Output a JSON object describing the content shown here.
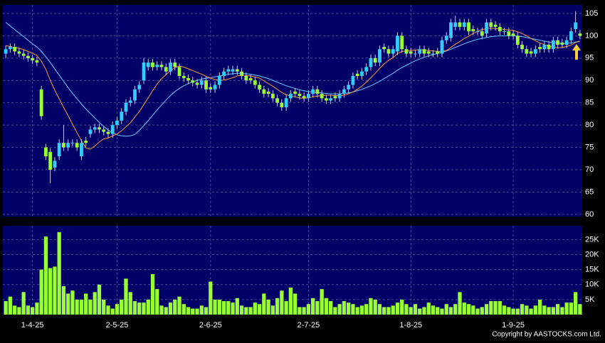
{
  "chart_data": {
    "type": "candlestick",
    "categories": [
      null,
      null,
      null,
      null,
      null,
      null,
      "1-4-25",
      null,
      null,
      null,
      null,
      null,
      null,
      null,
      null,
      null,
      null,
      null,
      null,
      null,
      null,
      null,
      null,
      null,
      null,
      "2-5-25",
      null,
      null,
      null,
      null,
      null,
      null,
      null,
      null,
      null,
      null,
      null,
      null,
      null,
      null,
      null,
      null,
      null,
      null,
      null,
      null,
      "2-6-25",
      null,
      null,
      null,
      null,
      null,
      null,
      null,
      null,
      null,
      null,
      null,
      null,
      null,
      null,
      null,
      null,
      null,
      null,
      null,
      null,
      null,
      "2-7-25",
      null,
      null,
      null,
      null,
      null,
      null,
      null,
      null,
      null,
      null,
      null,
      null,
      null,
      null,
      null,
      null,
      null,
      null,
      null,
      null,
      null,
      null,
      "1-8-25",
      null,
      null,
      null,
      null,
      null,
      null,
      null,
      null,
      null,
      null,
      null,
      null,
      null,
      null,
      null,
      null,
      null,
      null,
      null,
      null,
      null,
      null,
      "1-9-25",
      null,
      null,
      null,
      null,
      null,
      null,
      null,
      null,
      null,
      null,
      null,
      null,
      null,
      null,
      null
    ],
    "open": [
      96,
      97,
      97.5,
      96.5,
      96,
      95.5,
      95,
      94.5,
      88,
      75,
      74,
      70.5,
      73,
      76,
      75,
      76,
      76,
      73,
      76.5,
      78,
      79,
      79.5,
      79,
      78.5,
      78,
      80,
      81,
      83,
      85,
      85.5,
      88,
      90,
      93,
      94,
      93,
      93.5,
      93,
      92,
      94,
      93,
      91,
      90.5,
      90,
      89.5,
      89,
      90,
      88.5,
      88,
      89,
      91,
      92,
      92,
      92.5,
      92,
      91,
      90.5,
      90,
      89,
      88,
      87.5,
      87,
      86,
      85,
      84,
      86,
      87.5,
      87,
      86.5,
      86,
      87,
      88,
      87,
      86,
      85.5,
      86.5,
      86,
      87,
      88,
      89,
      91.5,
      91,
      92,
      93,
      95,
      94,
      97.5,
      97,
      96,
      96.5,
      100,
      97,
      96.5,
      96,
      96,
      97,
      96.5,
      96,
      96.5,
      96,
      99,
      99.5,
      102,
      103,
      102,
      103,
      101.5,
      101,
      101,
      100.5,
      103,
      102.5,
      102,
      101,
      101,
      100.5,
      100,
      98,
      97,
      96.5,
      96,
      97.5,
      97,
      98,
      97,
      99,
      98.5,
      98,
      99,
      101.5,
      100.5
    ],
    "high": [
      97.8,
      98.3,
      98.3,
      97.3,
      96.8,
      96.3,
      95.8,
      95.3,
      88.8,
      75.8,
      74.8,
      72.8,
      76.8,
      80,
      76.8,
      76.8,
      76.8,
      76.8,
      77.3,
      79.8,
      80.3,
      80.3,
      79.8,
      79.3,
      80.8,
      81.8,
      83.8,
      85.8,
      86.3,
      88.8,
      89.8,
      95,
      94.8,
      94.8,
      94.3,
      94.3,
      93.8,
      94.8,
      94.8,
      93.8,
      91.8,
      91.3,
      90.8,
      90.3,
      90.8,
      90.8,
      89.3,
      89.8,
      91.8,
      92.8,
      93.3,
      93.3,
      93.3,
      92.8,
      91.8,
      91.3,
      90.8,
      89.8,
      88.8,
      88.3,
      87.8,
      86.8,
      85.8,
      86.8,
      87.8,
      88.3,
      87.8,
      87.3,
      87.8,
      88.8,
      88.8,
      87.8,
      86.8,
      86.8,
      87.3,
      87.8,
      88.8,
      89.8,
      91.8,
      92.3,
      92.8,
      93.8,
      95.8,
      95.8,
      97.8,
      98.3,
      97.8,
      97.8,
      100.8,
      100.8,
      97.8,
      97.3,
      96.8,
      97.8,
      97.8,
      97.3,
      96.8,
      97.3,
      99.8,
      100.8,
      103.8,
      104.5,
      103.8,
      103.8,
      103.8,
      102.3,
      101.8,
      101.8,
      103.8,
      103.8,
      103.3,
      102.8,
      101.8,
      101.8,
      101.3,
      100.8,
      98.8,
      97.8,
      97.3,
      97.8,
      98.3,
      98.8,
      98.8,
      99.8,
      99.8,
      99.3,
      99.8,
      101.8,
      105.5,
      101.3
    ],
    "low": [
      95,
      96.2,
      95.7,
      95.2,
      94.7,
      94.2,
      93.7,
      93.2,
      81.2,
      72.2,
      67,
      69.7,
      72.2,
      74.2,
      74.2,
      75.2,
      74.2,
      72.2,
      75.2,
      77.2,
      78.2,
      78.2,
      77.7,
      77.2,
      77.2,
      79.2,
      80.2,
      82.2,
      84.2,
      84.7,
      87.2,
      89.2,
      92.2,
      92.2,
      92.2,
      92.2,
      91.2,
      91.2,
      92.2,
      90.2,
      89.7,
      89.2,
      88.7,
      88.2,
      88.2,
      87.2,
      87.2,
      87.2,
      88.2,
      90.2,
      91.2,
      91.2,
      91.2,
      90.2,
      89.2,
      89.2,
      88.2,
      87.2,
      86.2,
      86.2,
      85.2,
      84.2,
      83.2,
      83.2,
      85.2,
      86.2,
      85.7,
      85.2,
      85.2,
      86.2,
      86.2,
      85.2,
      84.7,
      84.7,
      85.2,
      85.2,
      86.2,
      87.2,
      88.2,
      90.2,
      90.2,
      91.2,
      92.2,
      93.2,
      93.2,
      96.2,
      95.2,
      95.2,
      95.7,
      96.2,
      95.2,
      95.2,
      95.2,
      95.2,
      95.2,
      95.2,
      95.2,
      95.2,
      95.2,
      98.2,
      98.7,
      101.2,
      101.2,
      101.2,
      100.2,
      100.2,
      100.2,
      99.2,
      99.7,
      101.2,
      101.2,
      100.2,
      100.2,
      99.2,
      99.2,
      97.2,
      96.2,
      95.2,
      95.2,
      95.2,
      96.2,
      96.2,
      96.2,
      96.2,
      97.2,
      97.2,
      97.2,
      98.2,
      100.7,
      99.2
    ],
    "close": [
      97,
      97.5,
      96.5,
      96,
      95.5,
      95,
      94.5,
      94,
      82,
      73,
      70,
      72,
      76,
      75,
      76,
      76,
      75,
      76,
      76,
      79,
      79.5,
      79,
      78.5,
      78,
      80,
      81,
      83,
      85,
      85.5,
      88,
      89,
      94,
      94,
      93,
      93.5,
      93,
      92,
      94,
      93,
      91,
      90.5,
      90,
      89.5,
      89,
      90,
      88,
      88,
      89,
      91,
      92,
      92.5,
      92.5,
      92,
      91,
      90,
      90,
      89,
      88,
      87,
      87,
      86,
      85,
      84,
      86,
      87,
      87,
      86.5,
      86,
      87,
      88,
      87,
      86,
      85.5,
      86,
      86,
      87,
      88,
      89,
      91,
      91,
      92,
      93,
      95,
      94,
      97,
      97,
      96,
      97,
      100,
      97,
      96,
      96,
      96,
      97,
      96,
      96,
      96,
      96,
      99,
      100,
      103,
      103,
      102,
      103,
      101,
      101,
      101,
      100,
      103,
      102,
      102,
      101,
      101,
      100,
      100,
      98,
      97,
      96,
      96,
      97,
      97,
      98,
      97,
      99,
      98,
      98,
      99,
      101,
      103,
      100
    ],
    "up_color": "#33ccff",
    "down_color": "#99ff33",
    "ma_fast": {
      "color": "#ff9933",
      "values": [
        97.8,
        97.6,
        97.4,
        97.2,
        96.9,
        96.5,
        96.1,
        95.6,
        94.3,
        92.5,
        90,
        87.8,
        85.9,
        84,
        82.1,
        80.2,
        78.3,
        76.5,
        74.9,
        74.6,
        75.3,
        76.2,
        76.9,
        77.1,
        77.6,
        78,
        78.7,
        79.6,
        80.5,
        81.8,
        83,
        84.6,
        86.1,
        87.7,
        89.2,
        90.4,
        91.3,
        92.2,
        92.9,
        93.2,
        93,
        92.6,
        92.2,
        91.8,
        91.4,
        90.9,
        90.5,
        90.2,
        90,
        90.1,
        90.3,
        90.6,
        91,
        91.2,
        91.1,
        91,
        90.8,
        90.5,
        89.9,
        89.3,
        88.7,
        88,
        87.3,
        86.8,
        86.5,
        86.3,
        86.1,
        86,
        86.1,
        86.3,
        86.5,
        86.6,
        86.7,
        86.7,
        86.6,
        86.6,
        86.7,
        87,
        87.4,
        88,
        88.7,
        89.6,
        90.6,
        91.6,
        92.7,
        93.7,
        94.5,
        95.1,
        96,
        96.5,
        96.6,
        96.7,
        96.8,
        96.9,
        96.8,
        96.7,
        96.6,
        96.5,
        96.5,
        96.7,
        97.4,
        98.1,
        98.7,
        99.4,
        99.9,
        100.5,
        101,
        101.4,
        101.6,
        101.7,
        101.6,
        101.6,
        101.4,
        101.3,
        101.2,
        100.9,
        100.5,
        100,
        99.4,
        98.9,
        98.4,
        98,
        97.6,
        97.5,
        97.3,
        97.4,
        97.6,
        97.9,
        98.5,
        98.8
      ]
    },
    "ma_slow": {
      "color": "#66ccff",
      "values": [
        103,
        102.2,
        101.4,
        100.6,
        99.8,
        99,
        98.2,
        97.5,
        96.5,
        95.3,
        94,
        92.6,
        91.2,
        89.8,
        88.4,
        87.1,
        85.9,
        84.7,
        83.6,
        82.6,
        81.6,
        80.6,
        79.7,
        78.9,
        78.3,
        77.8,
        77.6,
        77.5,
        77.6,
        77.9,
        78.8,
        79.9,
        81,
        82.2,
        83.4,
        84.5,
        85.6,
        86.6,
        87.5,
        88.2,
        88.8,
        89.3,
        89.7,
        90,
        90.3,
        90.5,
        90.6,
        90.8,
        91,
        91.2,
        91.4,
        91.5,
        91.6,
        91.6,
        91.5,
        91.4,
        91.2,
        91,
        90.7,
        90.4,
        90,
        89.6,
        89.2,
        88.8,
        88.5,
        88.2,
        87.9,
        87.7,
        87.5,
        87.4,
        87.3,
        87.2,
        87.1,
        87,
        87,
        87,
        87.1,
        87.2,
        87.4,
        87.7,
        88,
        88.4,
        88.8,
        89.3,
        89.8,
        90.4,
        91,
        91.6,
        92.3,
        92.9,
        93.4,
        93.9,
        94.4,
        94.8,
        95.2,
        95.5,
        95.8,
        96,
        96.3,
        96.6,
        97,
        97.4,
        97.8,
        98.2,
        98.6,
        98.9,
        99.2,
        99.4,
        99.6,
        99.8,
        99.9,
        100,
        100,
        100,
        100,
        99.9,
        99.8,
        99.6,
        99.4,
        99.2,
        99,
        98.8,
        98.6,
        98.5,
        98.4,
        98.3,
        98.3,
        98.4,
        98.6,
        98.8
      ]
    },
    "ylim": [
      59.5,
      106.9
    ],
    "yticks": [
      60,
      65,
      70,
      75,
      80,
      85,
      90,
      95,
      100,
      105
    ],
    "volume": {
      "color": "#99ff33",
      "values": [
        4500,
        6000,
        3000,
        2500,
        7500,
        3000,
        2500,
        4000,
        15000,
        26000,
        15500,
        16000,
        27500,
        9500,
        7000,
        8000,
        5000,
        5000,
        7000,
        5000,
        7500,
        10000,
        5000,
        3000,
        2000,
        3500,
        5000,
        12000,
        7500,
        4500,
        4000,
        4000,
        5000,
        13500,
        8500,
        3000,
        2500,
        4000,
        5000,
        6000,
        3500,
        2500,
        2000,
        2000,
        3000,
        2500,
        11000,
        5000,
        5000,
        4500,
        4500,
        4000,
        5500,
        3000,
        2500,
        2500,
        4000,
        3500,
        7000,
        5000,
        3000,
        5500,
        8000,
        4500,
        9000,
        7000,
        2500,
        2500,
        3500,
        5500,
        4500,
        8500,
        5500,
        4500,
        2500,
        3500,
        4500,
        4000,
        3500,
        2500,
        3000,
        3500,
        5500,
        5000,
        3500,
        2500,
        2500,
        3000,
        4000,
        5000,
        3500,
        2500,
        3500,
        2000,
        2500,
        4000,
        3000,
        2500,
        2000,
        3500,
        2500,
        3500,
        7500,
        4000,
        3500,
        3000,
        2000,
        2500,
        3500,
        4500,
        4500,
        4500,
        3000,
        2500,
        2000,
        2000,
        3500,
        3000,
        2000,
        3000,
        5000,
        3000,
        2500,
        2500,
        3500,
        2500,
        4000,
        4000,
        7500,
        3500
      ],
      "ylim": [
        0,
        29600
      ],
      "yticks": [
        {
          "value": 5000,
          "label": "5K"
        },
        {
          "value": 10000,
          "label": "10K"
        },
        {
          "value": 15000,
          "label": "15K"
        },
        {
          "value": 20000,
          "label": "20K"
        },
        {
          "value": 25000,
          "label": "25K"
        }
      ]
    },
    "grid": true,
    "copyright": "Copyright by AASTOCKS.com Ltd."
  }
}
